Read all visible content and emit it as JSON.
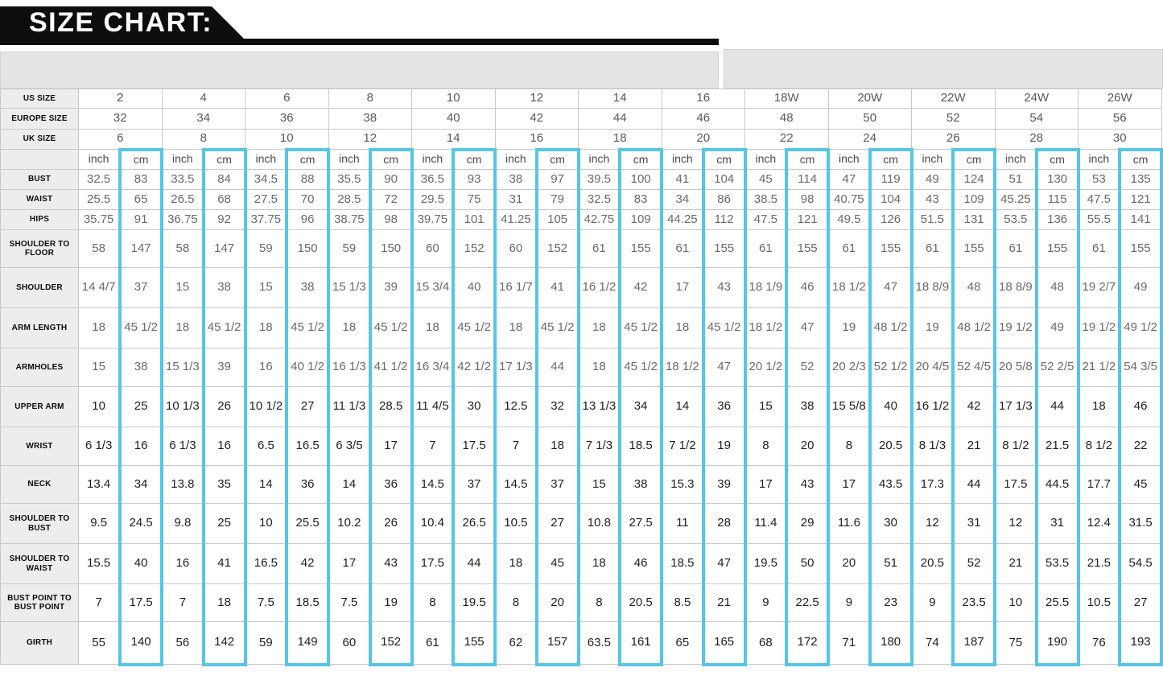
{
  "title": "SIZE CHART:",
  "colors": {
    "banner_black": "#0d0d0d",
    "cm_highlight_cyan": "#55c6e5",
    "label_gray": "#ededed"
  },
  "chart_data": {
    "type": "table",
    "title": "SIZE CHART:",
    "size_headers": [
      {
        "label": "US SIZE",
        "values": [
          "2",
          "4",
          "6",
          "8",
          "10",
          "12",
          "14",
          "16",
          "18W",
          "20W",
          "22W",
          "24W",
          "26W"
        ]
      },
      {
        "label": "EUROPE SIZE",
        "values": [
          "32",
          "34",
          "36",
          "38",
          "40",
          "42",
          "44",
          "46",
          "48",
          "50",
          "52",
          "54",
          "56"
        ]
      },
      {
        "label": "UK SIZE",
        "values": [
          "6",
          "8",
          "10",
          "12",
          "14",
          "16",
          "18",
          "20",
          "22",
          "24",
          "26",
          "28",
          "30"
        ]
      }
    ],
    "unit_labels": {
      "inch": "inch",
      "cm": "cm"
    },
    "rows": [
      {
        "label": "BUST",
        "values": [
          "32.5",
          "83",
          "33.5",
          "84",
          "34.5",
          "88",
          "35.5",
          "90",
          "36.5",
          "93",
          "38",
          "97",
          "39.5",
          "100",
          "41",
          "104",
          "45",
          "114",
          "47",
          "119",
          "49",
          "124",
          "51",
          "130",
          "53",
          "135"
        ]
      },
      {
        "label": "WAIST",
        "values": [
          "25.5",
          "65",
          "26.5",
          "68",
          "27.5",
          "70",
          "28.5",
          "72",
          "29.5",
          "75",
          "31",
          "79",
          "32.5",
          "83",
          "34",
          "86",
          "38.5",
          "98",
          "40.75",
          "104",
          "43",
          "109",
          "45.25",
          "115",
          "47.5",
          "121"
        ]
      },
      {
        "label": "HIPS",
        "values": [
          "35.75",
          "91",
          "36.75",
          "92",
          "37.75",
          "96",
          "38.75",
          "98",
          "39.75",
          "101",
          "41.25",
          "105",
          "42.75",
          "109",
          "44.25",
          "112",
          "47.5",
          "121",
          "49.5",
          "126",
          "51.5",
          "131",
          "53.5",
          "136",
          "55.5",
          "141"
        ]
      },
      {
        "label": "SHOULDER TO FLOOR",
        "values": [
          "58",
          "147",
          "58",
          "147",
          "59",
          "150",
          "59",
          "150",
          "60",
          "152",
          "60",
          "152",
          "61",
          "155",
          "61",
          "155",
          "61",
          "155",
          "61",
          "155",
          "61",
          "155",
          "61",
          "155",
          "61",
          "155"
        ]
      },
      {
        "label": "SHOULDER",
        "values": [
          "14 4/7",
          "37",
          "15",
          "38",
          "15",
          "38",
          "15 1/3",
          "39",
          "15 3/4",
          "40",
          "16 1/7",
          "41",
          "16 1/2",
          "42",
          "17",
          "43",
          "18 1/9",
          "46",
          "18 1/2",
          "47",
          "18 8/9",
          "48",
          "18 8/9",
          "48",
          "19 2/7",
          "49"
        ]
      },
      {
        "label": "ARM LENGTH",
        "values": [
          "18",
          "45 1/2",
          "18",
          "45 1/2",
          "18",
          "45 1/2",
          "18",
          "45 1/2",
          "18",
          "45 1/2",
          "18",
          "45 1/2",
          "18",
          "45 1/2",
          "18",
          "45 1/2",
          "18 1/2",
          "47",
          "19",
          "48 1/2",
          "19",
          "48 1/2",
          "19 1/2",
          "49",
          "19 1/2",
          "49 1/2"
        ]
      },
      {
        "label": "ARMHOLES",
        "values": [
          "15",
          "38",
          "15 1/3",
          "39",
          "16",
          "40 1/2",
          "16 1/3",
          "41 1/2",
          "16 3/4",
          "42 1/2",
          "17 1/3",
          "44",
          "18",
          "45 1/2",
          "18 1/2",
          "47",
          "20 1/2",
          "52",
          "20 2/3",
          "52 1/2",
          "20 4/5",
          "52 4/5",
          "20 5/8",
          "52 2/5",
          "21 1/2",
          "54 3/5"
        ]
      },
      {
        "label": "UPPER ARM",
        "values": [
          "10",
          "25",
          "10 1/3",
          "26",
          "10 1/2",
          "27",
          "11 1/3",
          "28.5",
          "11 4/5",
          "30",
          "12.5",
          "32",
          "13 1/3",
          "34",
          "14",
          "36",
          "15",
          "38",
          "15 5/8",
          "40",
          "16 1/2",
          "42",
          "17 1/3",
          "44",
          "18",
          "46"
        ]
      },
      {
        "label": "WRIST",
        "values": [
          "6 1/3",
          "16",
          "6 1/3",
          "16",
          "6.5",
          "16.5",
          "6 3/5",
          "17",
          "7",
          "17.5",
          "7",
          "18",
          "7 1/3",
          "18.5",
          "7 1/2",
          "19",
          "8",
          "20",
          "8",
          "20.5",
          "8 1/3",
          "21",
          "8 1/2",
          "21.5",
          "8 1/2",
          "22"
        ]
      },
      {
        "label": "NECK",
        "values": [
          "13.4",
          "34",
          "13.8",
          "35",
          "14",
          "36",
          "14",
          "36",
          "14.5",
          "37",
          "14.5",
          "37",
          "15",
          "38",
          "15.3",
          "39",
          "17",
          "43",
          "17",
          "43.5",
          "17.3",
          "44",
          "17.5",
          "44.5",
          "17.7",
          "45"
        ]
      },
      {
        "label": "SHOULDER TO BUST",
        "values": [
          "9.5",
          "24.5",
          "9.8",
          "25",
          "10",
          "25.5",
          "10.2",
          "26",
          "10.4",
          "26.5",
          "10.5",
          "27",
          "10.8",
          "27.5",
          "11",
          "28",
          "11.4",
          "29",
          "11.6",
          "30",
          "12",
          "31",
          "12",
          "31",
          "12.4",
          "31.5"
        ]
      },
      {
        "label": "SHOULDER TO WAIST",
        "values": [
          "15.5",
          "40",
          "16",
          "41",
          "16.5",
          "42",
          "17",
          "43",
          "17.5",
          "44",
          "18",
          "45",
          "18",
          "46",
          "18.5",
          "47",
          "19.5",
          "50",
          "20",
          "51",
          "20.5",
          "52",
          "21",
          "53.5",
          "21.5",
          "54.5"
        ]
      },
      {
        "label": "BUST POINT TO BUST POINT",
        "values": [
          "7",
          "17.5",
          "7",
          "18",
          "7.5",
          "18.5",
          "7.5",
          "19",
          "8",
          "19.5",
          "8",
          "20",
          "8",
          "20.5",
          "8.5",
          "21",
          "9",
          "22.5",
          "9",
          "23",
          "9",
          "23.5",
          "10",
          "25.5",
          "10.5",
          "27"
        ]
      },
      {
        "label": "GIRTH",
        "values": [
          "55",
          "140",
          "56",
          "142",
          "59",
          "149",
          "60",
          "152",
          "61",
          "155",
          "62",
          "157",
          "63.5",
          "161",
          "65",
          "165",
          "68",
          "172",
          "71",
          "180",
          "74",
          "187",
          "75",
          "190",
          "76",
          "193"
        ]
      }
    ]
  }
}
